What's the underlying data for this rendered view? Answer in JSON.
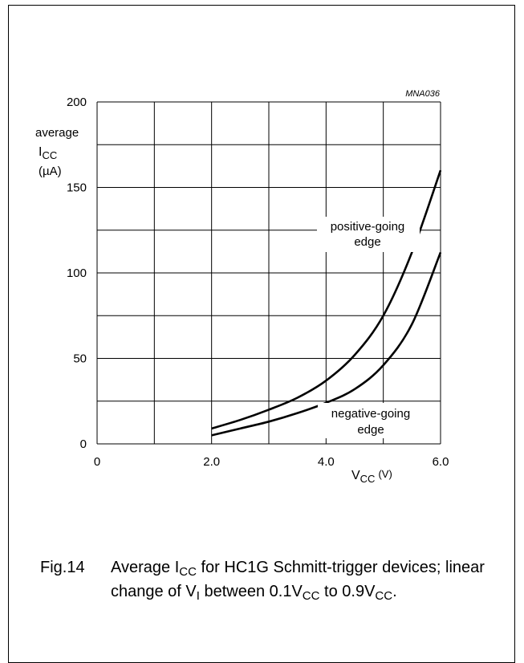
{
  "figure_id": "MNA036",
  "y_axis": {
    "line1": "average",
    "symbol": "I",
    "symbol_sub": "CC",
    "unit": "(µA)"
  },
  "x_axis": {
    "symbol": "V",
    "symbol_sub": "CC",
    "unit": "(V)"
  },
  "caption": {
    "number": "Fig.14",
    "p1": "Average I",
    "p1_sub": "CC",
    "p2": " for HC1G Schmitt-trigger devices; linear change of V",
    "p2_sub": "I",
    "p3": " between 0.1V",
    "p3_sub": "CC",
    "p4": " to 0.9V",
    "p4_sub": "CC",
    "p5": "."
  },
  "chart_data": {
    "type": "line",
    "xlim": [
      0,
      6.0
    ],
    "ylim": [
      0,
      200
    ],
    "x_ticks": [
      "0",
      "2.0",
      "4.0",
      "6.0"
    ],
    "y_ticks": [
      "0",
      "50",
      "100",
      "150",
      "200"
    ],
    "grid": true,
    "series": [
      {
        "name": "positive-going edge",
        "label_line1": "positive-going",
        "label_line2": "edge",
        "x": [
          2.0,
          2.5,
          3.0,
          3.5,
          4.0,
          4.5,
          5.0,
          5.5,
          6.0
        ],
        "y": [
          9,
          14,
          20,
          27,
          37,
          52,
          75,
          112,
          160
        ]
      },
      {
        "name": "negative-going edge",
        "label_line1": "negative-going",
        "label_line2": "edge",
        "x": [
          2.0,
          2.5,
          3.0,
          3.5,
          4.0,
          4.5,
          5.0,
          5.5,
          6.0
        ],
        "y": [
          5,
          9,
          13,
          18,
          24,
          32,
          46,
          70,
          112
        ]
      }
    ]
  }
}
